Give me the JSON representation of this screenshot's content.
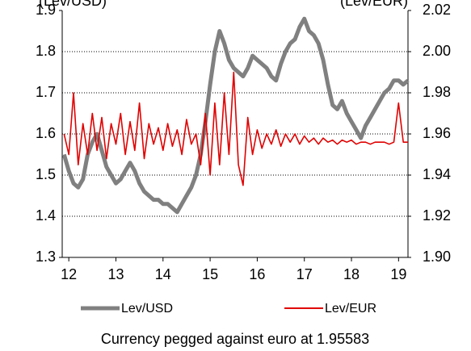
{
  "chart_data": {
    "type": "line",
    "y_label": "(Lev/USD)",
    "y2_label": "(Lev/EUR)",
    "footnote": "Currency pegged against euro at 1.95583",
    "x": [
      11.9,
      12.0,
      12.1,
      12.2,
      12.3,
      12.4,
      12.5,
      12.6,
      12.7,
      12.8,
      12.9,
      13.0,
      13.1,
      13.2,
      13.3,
      13.4,
      13.5,
      13.6,
      13.7,
      13.8,
      13.9,
      14.0,
      14.1,
      14.2,
      14.3,
      14.4,
      14.5,
      14.6,
      14.7,
      14.8,
      14.9,
      15.0,
      15.1,
      15.2,
      15.3,
      15.4,
      15.5,
      15.6,
      15.7,
      15.8,
      15.9,
      16.0,
      16.1,
      16.2,
      16.3,
      16.4,
      16.5,
      16.6,
      16.7,
      16.8,
      16.9,
      17.0,
      17.1,
      17.2,
      17.3,
      17.4,
      17.5,
      17.6,
      17.7,
      17.8,
      17.9,
      18.0,
      18.1,
      18.2,
      18.3,
      18.4,
      18.5,
      18.6,
      18.7,
      18.8,
      18.9,
      19.0,
      19.1,
      19.2
    ],
    "series": [
      {
        "name": "Lev/USD",
        "color": "#808080",
        "axis": "y",
        "values": [
          1.55,
          1.51,
          1.48,
          1.47,
          1.49,
          1.55,
          1.58,
          1.6,
          1.56,
          1.52,
          1.5,
          1.48,
          1.49,
          1.51,
          1.53,
          1.51,
          1.48,
          1.46,
          1.45,
          1.44,
          1.44,
          1.43,
          1.43,
          1.42,
          1.41,
          1.43,
          1.45,
          1.47,
          1.5,
          1.55,
          1.63,
          1.72,
          1.8,
          1.85,
          1.82,
          1.78,
          1.76,
          1.75,
          1.74,
          1.76,
          1.79,
          1.78,
          1.77,
          1.76,
          1.74,
          1.73,
          1.77,
          1.8,
          1.82,
          1.83,
          1.86,
          1.88,
          1.85,
          1.84,
          1.82,
          1.78,
          1.72,
          1.67,
          1.66,
          1.68,
          1.65,
          1.63,
          1.61,
          1.59,
          1.62,
          1.64,
          1.66,
          1.68,
          1.7,
          1.71,
          1.73,
          1.73,
          1.72,
          1.73
        ]
      },
      {
        "name": "Lev/EUR",
        "color": "#e00000",
        "axis": "y2",
        "values": [
          1.96,
          1.95,
          1.98,
          1.945,
          1.965,
          1.95,
          1.97,
          1.952,
          1.968,
          1.948,
          1.965,
          1.955,
          1.97,
          1.95,
          1.966,
          1.952,
          1.975,
          1.948,
          1.965,
          1.955,
          1.963,
          1.952,
          1.965,
          1.954,
          1.962,
          1.95,
          1.967,
          1.955,
          1.96,
          1.945,
          1.97,
          1.94,
          1.975,
          1.945,
          1.98,
          1.95,
          1.99,
          1.945,
          1.935,
          1.968,
          1.95,
          1.962,
          1.953,
          1.96,
          1.955,
          1.962,
          1.954,
          1.96,
          1.956,
          1.96,
          1.955,
          1.959,
          1.956,
          1.958,
          1.955,
          1.958,
          1.956,
          1.957,
          1.955,
          1.957,
          1.956,
          1.957,
          1.955,
          1.956,
          1.956,
          1.955,
          1.956,
          1.956,
          1.956,
          1.955,
          1.956,
          1.975,
          1.956,
          1.956
        ]
      }
    ],
    "xlim": [
      11.86,
      19.2
    ],
    "xticks": [
      12,
      13,
      14,
      15,
      16,
      17,
      18,
      19
    ],
    "ylim": [
      1.3,
      1.9
    ],
    "yticks": [
      1.3,
      1.4,
      1.5,
      1.6,
      1.7,
      1.8,
      1.9
    ],
    "y2lim": [
      1.9,
      2.02
    ],
    "y2ticks": [
      {
        "value": 1.9,
        "label": "1.90"
      },
      {
        "value": 1.92,
        "label": "1.92"
      },
      {
        "value": 1.94,
        "label": "1.94"
      },
      {
        "value": 1.96,
        "label": "1.96"
      },
      {
        "value": 1.98,
        "label": "1.98"
      },
      {
        "value": 2.0,
        "label": "2.00"
      },
      {
        "value": 2.02,
        "label": "2.02"
      }
    ],
    "grid": true
  }
}
